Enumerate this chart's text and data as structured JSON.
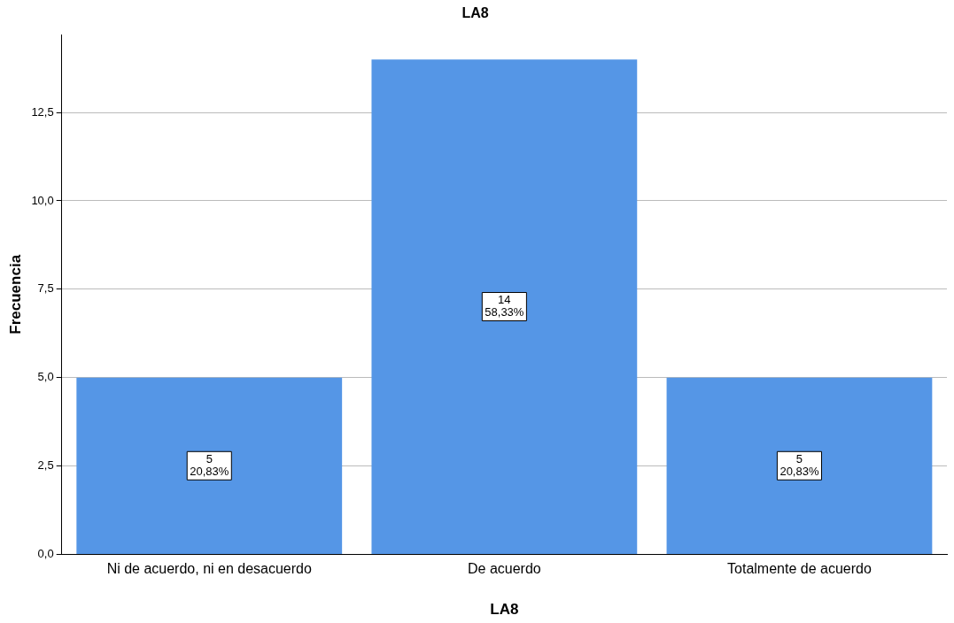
{
  "chart_data": {
    "type": "bar",
    "title": "LA8",
    "xlabel": "LA8",
    "ylabel": "Frecuencia",
    "categories": [
      "Ni de acuerdo, ni en desacuerdo",
      "De acuerdo",
      "Totalmente de acuerdo"
    ],
    "values": [
      5,
      14,
      5
    ],
    "color": "#5596e6",
    "value_labels": [
      "5\n20,83%",
      "14\n58,33%",
      "5\n20,83%"
    ],
    "ylim": [
      0,
      14.7
    ],
    "yticks": [
      {
        "value": 0,
        "label": "0,0"
      },
      {
        "value": 2.5,
        "label": "2,5"
      },
      {
        "value": 5,
        "label": "5,0"
      },
      {
        "value": 7.5,
        "label": "7,5"
      },
      {
        "value": 10,
        "label": "10,0"
      },
      {
        "value": 12.5,
        "label": "12,5"
      }
    ],
    "grid": "y",
    "legend": false
  }
}
